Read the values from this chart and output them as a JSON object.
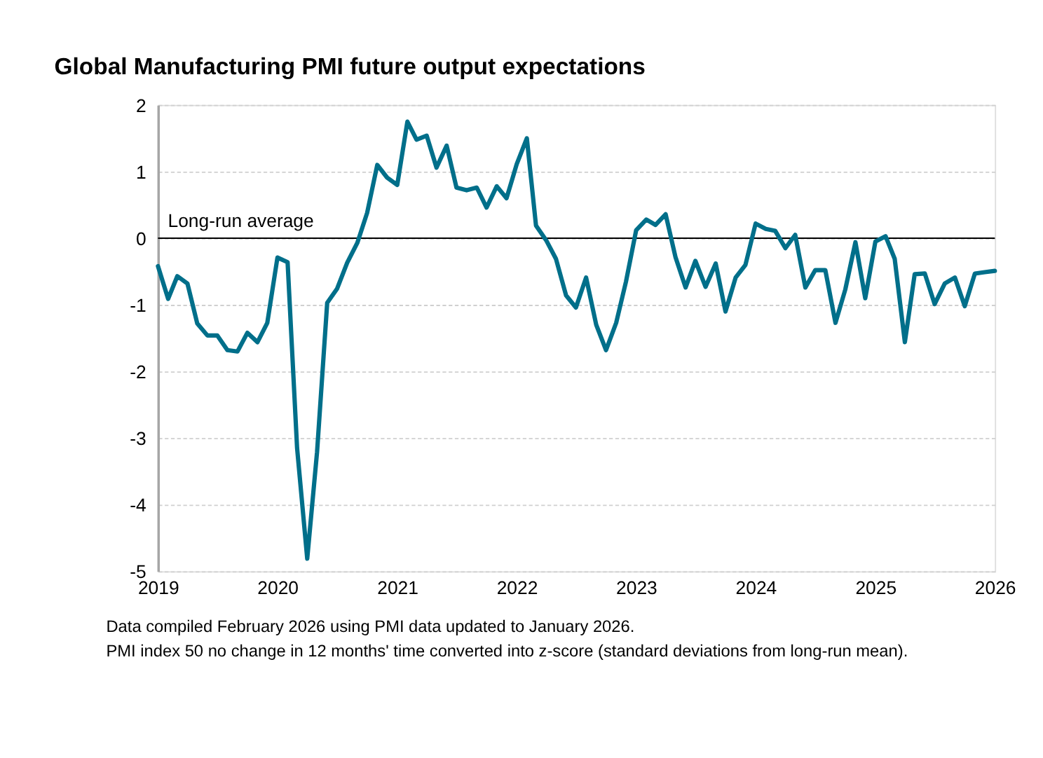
{
  "chart_data": {
    "type": "line",
    "title": "Global Manufacturing PMI future output expectations",
    "x": [
      "2019-01",
      "2019-02",
      "2019-03",
      "2019-04",
      "2019-05",
      "2019-06",
      "2019-07",
      "2019-08",
      "2019-09",
      "2019-10",
      "2019-11",
      "2019-12",
      "2020-01",
      "2020-02",
      "2020-03",
      "2020-04",
      "2020-05",
      "2020-06",
      "2020-07",
      "2020-08",
      "2020-09",
      "2020-10",
      "2020-11",
      "2020-12",
      "2021-01",
      "2021-02",
      "2021-03",
      "2021-04",
      "2021-05",
      "2021-06",
      "2021-07",
      "2021-08",
      "2021-09",
      "2021-10",
      "2021-11",
      "2021-12",
      "2022-01",
      "2022-02",
      "2022-03",
      "2022-04",
      "2022-05",
      "2022-06",
      "2022-07",
      "2022-08",
      "2022-09",
      "2022-10",
      "2022-11",
      "2022-12",
      "2023-01",
      "2023-02",
      "2023-03",
      "2023-04",
      "2023-05",
      "2023-06",
      "2023-07",
      "2023-08",
      "2023-09",
      "2023-10",
      "2023-11",
      "2023-12",
      "2024-01",
      "2024-02",
      "2024-03",
      "2024-04",
      "2024-05",
      "2024-06",
      "2024-07",
      "2024-08",
      "2024-09",
      "2024-10",
      "2024-11",
      "2024-12",
      "2025-01",
      "2025-02",
      "2025-03",
      "2025-04",
      "2025-05",
      "2025-06",
      "2025-07",
      "2025-08",
      "2025-09",
      "2025-10",
      "2025-11",
      "2025-12",
      "2026-01"
    ],
    "series": [
      {
        "color": "#006f8a",
        "values": [
          -0.42,
          -0.91,
          -0.57,
          -0.68,
          -1.28,
          -1.46,
          -1.46,
          -1.68,
          -1.7,
          -1.42,
          -1.56,
          -1.27,
          -0.29,
          -0.36,
          -3.15,
          -4.81,
          -3.21,
          -0.97,
          -0.76,
          -0.37,
          -0.07,
          0.38,
          1.1,
          0.91,
          0.8,
          1.75,
          1.48,
          1.54,
          1.06,
          1.39,
          0.76,
          0.72,
          0.76,
          0.46,
          0.78,
          0.6,
          1.11,
          1.5,
          0.19,
          -0.03,
          -0.31,
          -0.86,
          -1.04,
          -0.59,
          -1.3,
          -1.68,
          -1.27,
          -0.65,
          0.12,
          0.28,
          0.2,
          0.36,
          -0.28,
          -0.74,
          -0.34,
          -0.73,
          -0.38,
          -1.1,
          -0.59,
          -0.4,
          0.22,
          0.14,
          0.11,
          -0.15,
          0.05,
          -0.74,
          -0.48,
          -0.48,
          -1.27,
          -0.77,
          -0.06,
          -0.9,
          -0.05,
          0.03,
          -0.31,
          -1.56,
          -0.54,
          -0.53,
          -0.99,
          -0.68,
          -0.59,
          -1.02,
          -0.53,
          -0.51,
          -0.49
        ]
      }
    ],
    "xlim": [
      "2019-01",
      "2026-01"
    ],
    "xticks": [
      {
        "value": "2019-01",
        "label": "2019"
      },
      {
        "value": "2020-01",
        "label": "2020"
      },
      {
        "value": "2021-01",
        "label": "2021"
      },
      {
        "value": "2022-01",
        "label": "2022"
      },
      {
        "value": "2023-01",
        "label": "2023"
      },
      {
        "value": "2024-01",
        "label": "2024"
      },
      {
        "value": "2025-01",
        "label": "2025"
      },
      {
        "value": "2026-01",
        "label": "2026"
      }
    ],
    "ylim": [
      -5,
      2
    ],
    "yticks": [
      -5,
      -4,
      -3,
      -2,
      -1,
      0,
      1,
      2
    ],
    "grid": "y",
    "ref_lines": [
      {
        "axis": "y",
        "value": 0,
        "label": "Long-run average",
        "color": "#000000"
      }
    ],
    "annotations": [
      "Data compiled February 2026 using PMI data updated to January 2026.",
      "PMI index 50 no change in 12 months' time converted into z-score (standard deviations from long-run mean)."
    ]
  }
}
